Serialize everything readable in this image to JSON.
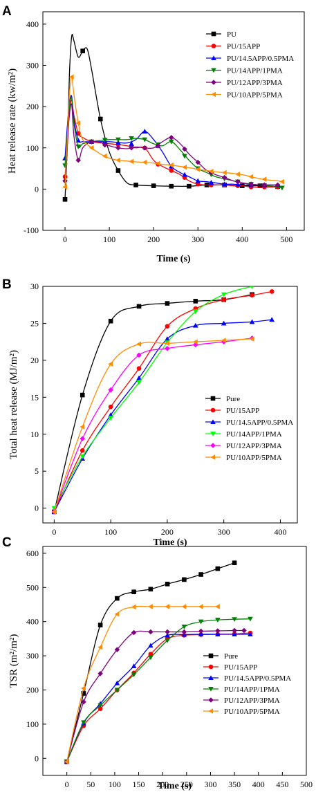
{
  "chart_data": [
    {
      "panel": "A",
      "type": "line",
      "xlabel": "Time (s)",
      "ylabel": "Heat release rate (kw/m²)",
      "xlim": [
        -50,
        540
      ],
      "ylim": [
        -100,
        430
      ],
      "xticks": [
        0,
        100,
        200,
        300,
        400,
        500
      ],
      "yticks": [
        -100,
        0,
        100,
        200,
        300,
        400
      ],
      "legend": "top-right",
      "series": [
        {
          "name": "PU",
          "color": "#000000",
          "marker": "square",
          "x": [
            0,
            5,
            10,
            15,
            20,
            30,
            40,
            50,
            60,
            80,
            100,
            120,
            140,
            160,
            200,
            240,
            280,
            320,
            360,
            400,
            440,
            480
          ],
          "y": [
            -25,
            100,
            280,
            370,
            360,
            320,
            335,
            340,
            290,
            170,
            90,
            45,
            15,
            10,
            8,
            7,
            7,
            10,
            10,
            8,
            8,
            6
          ],
          "markers_x": [
            0,
            40,
            80,
            120,
            160,
            200,
            240,
            280,
            320,
            360,
            400,
            440,
            480
          ],
          "markers_y": [
            -25,
            335,
            170,
            45,
            10,
            8,
            7,
            7,
            10,
            10,
            8,
            8,
            6
          ]
        },
        {
          "name": "PU/15APP",
          "color": "#ff0000",
          "marker": "circle",
          "x": [
            0,
            5,
            10,
            15,
            20,
            30,
            40,
            60,
            80,
            100,
            120,
            140,
            160,
            180,
            200,
            220,
            240,
            260,
            280,
            300,
            320,
            340,
            360,
            380,
            400,
            420,
            440,
            460,
            480
          ],
          "y": [
            30,
            100,
            190,
            215,
            180,
            135,
            125,
            115,
            112,
            110,
            108,
            105,
            100,
            100,
            70,
            55,
            45,
            35,
            20,
            12,
            10,
            10,
            10,
            8,
            8,
            5,
            5,
            5,
            5
          ],
          "markers_x": [
            0,
            30,
            60,
            90,
            120,
            150,
            180,
            210,
            240,
            270,
            300,
            330,
            360,
            390,
            420,
            450,
            480
          ],
          "markers_y": [
            30,
            135,
            115,
            111,
            108,
            103,
            100,
            60,
            45,
            28,
            12,
            10,
            10,
            8,
            5,
            5,
            5
          ]
        },
        {
          "name": "PU/14.5APP/0.5PMA",
          "color": "#0000ff",
          "marker": "triangle-up",
          "x": [
            0,
            5,
            10,
            15,
            20,
            30,
            40,
            60,
            80,
            100,
            120,
            140,
            160,
            180,
            200,
            220,
            240,
            260,
            280,
            300,
            320,
            340,
            360,
            380,
            400,
            420,
            440,
            460,
            480
          ],
          "y": [
            75,
            150,
            210,
            225,
            170,
            118,
            115,
            115,
            115,
            115,
            113,
            112,
            120,
            140,
            120,
            90,
            55,
            40,
            30,
            20,
            18,
            15,
            12,
            12,
            10,
            10,
            10,
            10,
            10
          ],
          "markers_x": [
            0,
            30,
            60,
            90,
            120,
            150,
            180,
            210,
            240,
            270,
            300,
            330,
            360,
            390,
            420,
            450,
            480
          ],
          "markers_y": [
            75,
            118,
            115,
            115,
            113,
            110,
            140,
            105,
            55,
            35,
            20,
            16,
            12,
            11,
            10,
            10,
            10
          ]
        },
        {
          "name": "PU/14APP/1PMA",
          "color": "#008000",
          "marker": "triangle-down",
          "x": [
            0,
            5,
            10,
            15,
            20,
            30,
            40,
            60,
            80,
            100,
            120,
            140,
            160,
            180,
            200,
            220,
            240,
            260,
            280,
            300,
            320,
            340,
            360,
            380,
            400,
            420,
            440,
            460,
            480,
            490
          ],
          "y": [
            57,
            130,
            200,
            220,
            160,
            103,
            110,
            115,
            118,
            120,
            120,
            120,
            123,
            120,
            110,
            105,
            115,
            95,
            70,
            50,
            40,
            30,
            25,
            20,
            15,
            12,
            10,
            8,
            5,
            3
          ],
          "markers_x": [
            0,
            30,
            60,
            90,
            120,
            150,
            180,
            210,
            240,
            270,
            300,
            330,
            360,
            390,
            420,
            450,
            490
          ],
          "markers_y": [
            57,
            103,
            115,
            119,
            120,
            123,
            120,
            108,
            115,
            80,
            50,
            35,
            25,
            18,
            12,
            9,
            3
          ]
        },
        {
          "name": "PU/12APP/3PMA",
          "color": "#7f007f",
          "marker": "diamond",
          "x": [
            0,
            5,
            10,
            15,
            20,
            30,
            40,
            60,
            80,
            100,
            120,
            140,
            160,
            180,
            200,
            220,
            240,
            260,
            280,
            300,
            320,
            340,
            360,
            380,
            400,
            420,
            440,
            460,
            480
          ],
          "y": [
            20,
            110,
            180,
            205,
            130,
            70,
            100,
            115,
            113,
            105,
            100,
            98,
            102,
            100,
            100,
            115,
            125,
            110,
            85,
            65,
            45,
            35,
            28,
            20,
            15,
            12,
            10,
            10,
            10
          ],
          "markers_x": [
            0,
            30,
            60,
            90,
            120,
            150,
            180,
            210,
            240,
            270,
            300,
            330,
            360,
            390,
            420,
            450,
            480
          ],
          "markers_y": [
            20,
            70,
            115,
            107,
            100,
            100,
            100,
            105,
            125,
            97,
            65,
            40,
            28,
            18,
            12,
            10,
            10
          ]
        },
        {
          "name": "PU/10APP/5PMA",
          "color": "#ff8c00",
          "marker": "triangle-left",
          "x": [
            0,
            5,
            10,
            15,
            20,
            30,
            40,
            60,
            80,
            100,
            120,
            140,
            160,
            180,
            200,
            220,
            240,
            260,
            280,
            300,
            320,
            340,
            360,
            380,
            400,
            420,
            440,
            460,
            480,
            490
          ],
          "y": [
            5,
            120,
            230,
            272,
            230,
            160,
            120,
            100,
            85,
            75,
            70,
            68,
            66,
            65,
            63,
            60,
            58,
            55,
            52,
            48,
            45,
            42,
            40,
            38,
            35,
            30,
            25,
            22,
            20,
            18
          ],
          "markers_x": [
            0,
            15,
            30,
            60,
            90,
            120,
            150,
            180,
            210,
            240,
            270,
            300,
            330,
            360,
            390,
            420,
            450,
            490
          ],
          "markers_y": [
            5,
            272,
            160,
            100,
            80,
            70,
            67,
            65,
            62,
            58,
            53,
            48,
            43,
            40,
            36,
            30,
            24,
            18
          ]
        }
      ]
    },
    {
      "panel": "B",
      "type": "line",
      "xlabel": "Time (s)",
      "ylabel": "Total heat release (MJ/m²)",
      "xlim": [
        -20,
        430
      ],
      "ylim": [
        -2,
        30
      ],
      "xticks": [
        0,
        100,
        200,
        300,
        400
      ],
      "yticks": [
        0,
        5,
        10,
        15,
        20,
        25,
        30
      ],
      "legend": "bottom-right",
      "series": [
        {
          "name": "Pure",
          "color": "#000000",
          "marker": "square",
          "x": [
            0,
            50,
            100,
            150,
            200,
            250,
            300,
            350
          ],
          "y": [
            -0.5,
            15.3,
            25.3,
            27.3,
            27.7,
            28.0,
            28.2,
            28.9
          ]
        },
        {
          "name": "PU/15APP",
          "color": "#ff0000",
          "marker": "circle",
          "x": [
            0,
            50,
            100,
            150,
            200,
            250,
            300,
            350,
            385
          ],
          "y": [
            -0.5,
            7.8,
            13.7,
            18.9,
            24.6,
            27.0,
            28.2,
            28.8,
            29.3
          ]
        },
        {
          "name": "PU/14.5APP/0.5PMA",
          "color": "#0000ff",
          "marker": "triangle-up",
          "x": [
            0,
            50,
            100,
            150,
            200,
            250,
            300,
            350,
            385
          ],
          "y": [
            -0.5,
            6.7,
            12.6,
            17.6,
            22.9,
            24.7,
            25.0,
            25.2,
            25.5
          ]
        },
        {
          "name": "PU/14APP/1PMA",
          "color": "#00ff00",
          "marker": "triangle-down",
          "x": [
            0,
            50,
            100,
            150,
            200,
            250,
            300,
            350
          ],
          "y": [
            0.0,
            7.0,
            12.2,
            17.0,
            22.4,
            26.6,
            28.9,
            30.0
          ]
        },
        {
          "name": "PU/12APP/3PMA",
          "color": "#ff00ff",
          "marker": "diamond",
          "x": [
            0,
            50,
            100,
            150,
            200,
            250,
            300,
            350
          ],
          "y": [
            -0.5,
            9.4,
            16.0,
            20.7,
            21.6,
            22.1,
            22.5,
            23.0
          ]
        },
        {
          "name": "PU/10APP/5PMA",
          "color": "#ff8c00",
          "marker": "triangle-left",
          "x": [
            0,
            50,
            100,
            150,
            200,
            250,
            300,
            350
          ],
          "y": [
            -0.5,
            11.0,
            19.5,
            22.2,
            22.3,
            22.5,
            22.7,
            22.9
          ]
        }
      ]
    },
    {
      "panel": "C",
      "type": "line",
      "xlabel": "Time (s)",
      "ylabel": "TSR (m²/m²)",
      "xlim": [
        -50,
        500
      ],
      "ylim": [
        -50,
        620
      ],
      "xticks": [
        0,
        50,
        100,
        150,
        200,
        250,
        300,
        350,
        400,
        450,
        500
      ],
      "yticks": [
        0,
        100,
        200,
        300,
        400,
        500,
        600
      ],
      "legend": "bottom-right",
      "series": [
        {
          "name": "Pure",
          "color": "#000000",
          "marker": "square",
          "x": [
            0,
            35,
            70,
            105,
            140,
            175,
            210,
            245,
            280,
            315,
            350
          ],
          "y": [
            -10,
            190,
            390,
            468,
            487,
            495,
            510,
            523,
            538,
            555,
            572
          ]
        },
        {
          "name": "PU/15APP",
          "color": "#ff0000",
          "marker": "circle",
          "x": [
            0,
            35,
            70,
            105,
            140,
            175,
            210,
            245,
            280,
            315,
            350,
            383
          ],
          "y": [
            -10,
            95,
            145,
            200,
            250,
            305,
            350,
            360,
            362,
            363,
            364,
            367
          ]
        },
        {
          "name": "PU/14.5APP/0.5PMA",
          "color": "#0000ff",
          "marker": "triangle-up",
          "x": [
            0,
            35,
            70,
            105,
            140,
            175,
            210,
            245,
            280,
            315,
            350,
            383
          ],
          "y": [
            -10,
            103,
            160,
            220,
            270,
            330,
            360,
            362,
            363,
            363,
            363,
            363
          ]
        },
        {
          "name": "PU/14APP/1PMA",
          "color": "#008000",
          "marker": "triangle-down",
          "x": [
            0,
            35,
            70,
            105,
            140,
            175,
            210,
            245,
            280,
            315,
            350,
            383
          ],
          "y": [
            -10,
            105,
            155,
            200,
            245,
            295,
            345,
            385,
            400,
            405,
            407,
            408
          ]
        },
        {
          "name": "PU/12APP/3PMA",
          "color": "#7f007f",
          "marker": "diamond",
          "x": [
            0,
            35,
            70,
            105,
            140,
            175,
            210,
            245,
            280,
            315,
            350,
            370
          ],
          "y": [
            -10,
            165,
            248,
            318,
            368,
            370,
            370,
            370,
            372,
            373,
            374,
            374
          ]
        },
        {
          "name": "PU/10APP/5PMA",
          "color": "#ff8c00",
          "marker": "triangle-left",
          "x": [
            0,
            35,
            70,
            105,
            140,
            175,
            210,
            245,
            280,
            315
          ],
          "y": [
            -10,
            205,
            325,
            422,
            443,
            444,
            444,
            444,
            444,
            444
          ]
        }
      ]
    }
  ]
}
